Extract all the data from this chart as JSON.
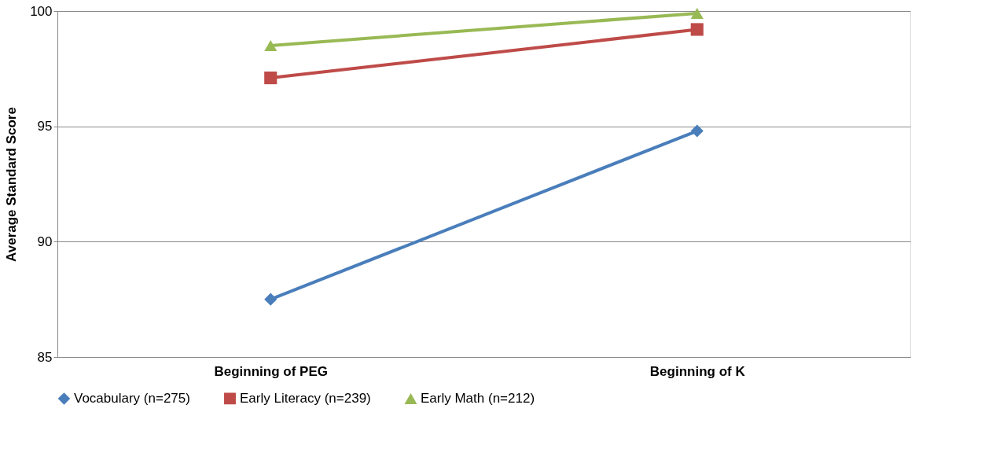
{
  "chart_data": {
    "type": "line",
    "ylabel": "Average Standard Score",
    "categories": [
      "Beginning of PEG",
      "Beginning of K"
    ],
    "series": [
      {
        "name": "Vocabulary (n=275)",
        "color": "#4a7ebb",
        "marker": "diamond",
        "values": [
          87.5,
          94.8
        ]
      },
      {
        "name": "Early Literacy (n=239)",
        "color": "#be4b48",
        "marker": "square",
        "values": [
          97.1,
          99.2
        ]
      },
      {
        "name": "Early Math (n=212)",
        "color": "#98b954",
        "marker": "triangle",
        "values": [
          98.5,
          99.9
        ]
      }
    ],
    "ylim": [
      85,
      100
    ],
    "yticks": [
      85,
      90,
      95,
      100
    ],
    "grid": "y",
    "legend": "bottom",
    "line_style": "solid"
  }
}
